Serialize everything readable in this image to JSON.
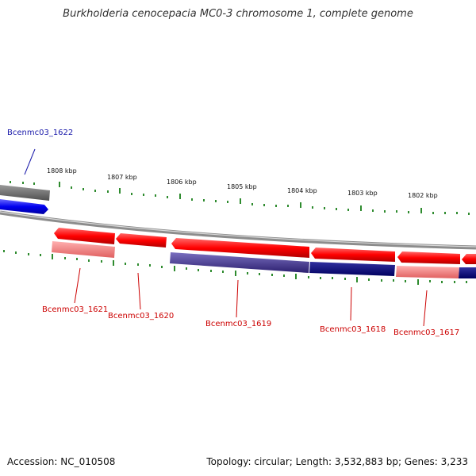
{
  "title": "Burkholderia cenocepacia MC0-3 chromosome 1, complete genome",
  "footer": {
    "accession": "Accession: NC_010508",
    "topology": "Topology: circular; Length: 3,532,883 bp; Genes: 3,233"
  },
  "ticks": {
    "labels": [
      "1808 kbp",
      "1807 kbp",
      "1806 kbp",
      "1805 kbp",
      "1804 kbp",
      "1803 kbp",
      "1802 kbp"
    ],
    "color": "#2e8b2e"
  },
  "genes": {
    "forward_color": "#1a1aff",
    "reverse_color": "#ff0000",
    "labels": [
      "Bcenmc03_1622",
      "Bcenmc03_1621",
      "Bcenmc03_1620",
      "Bcenmc03_1619",
      "Bcenmc03_1618",
      "Bcenmc03_1617"
    ],
    "label_colors": [
      "#1a1aaa",
      "#cc0000",
      "#cc0000",
      "#cc0000",
      "#cc0000",
      "#cc0000"
    ]
  },
  "colors": {
    "backbone": "#8c8c8c",
    "forward_strand": "#0000ee",
    "reverse_strand": "#ff0000",
    "reverse_light": "#f08080",
    "purple_bar": "#3c2c8c",
    "navy_bar": "#0a0a80"
  }
}
